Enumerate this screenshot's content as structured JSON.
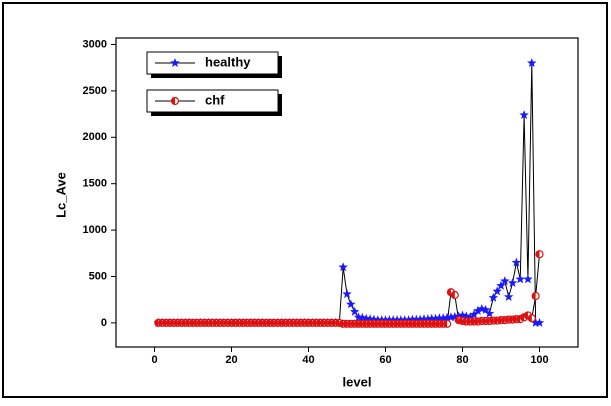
{
  "chart_data": {
    "type": "line",
    "x_label": "level",
    "y_label": "Lc_Ave",
    "x": [
      1,
      2,
      3,
      4,
      5,
      6,
      7,
      8,
      9,
      10,
      11,
      12,
      13,
      14,
      15,
      16,
      17,
      18,
      19,
      20,
      21,
      22,
      23,
      24,
      25,
      26,
      27,
      28,
      29,
      30,
      31,
      32,
      33,
      34,
      35,
      36,
      37,
      38,
      39,
      40,
      41,
      42,
      43,
      44,
      45,
      46,
      47,
      48,
      49,
      50,
      51,
      52,
      53,
      54,
      55,
      56,
      57,
      58,
      59,
      60,
      61,
      62,
      63,
      64,
      65,
      66,
      67,
      68,
      69,
      70,
      71,
      72,
      73,
      74,
      75,
      76,
      77,
      78,
      79,
      80,
      81,
      82,
      83,
      84,
      85,
      86,
      87,
      88,
      89,
      90,
      91,
      92,
      93,
      94,
      95,
      96,
      97,
      98,
      99,
      100
    ],
    "series": [
      {
        "name": "healthy",
        "color": "#1a1aff",
        "marker": "star",
        "line_color": "#000000",
        "values": [
          0,
          0,
          0,
          0,
          0,
          0,
          0,
          0,
          0,
          0,
          0,
          0,
          0,
          0,
          0,
          0,
          0,
          0,
          0,
          0,
          0,
          0,
          0,
          0,
          0,
          0,
          0,
          0,
          0,
          0,
          0,
          0,
          0,
          0,
          0,
          0,
          0,
          0,
          0,
          0,
          0,
          0,
          0,
          0,
          0,
          0,
          0,
          0,
          600,
          310,
          200,
          120,
          60,
          55,
          45,
          40,
          35,
          30,
          30,
          30,
          30,
          30,
          30,
          30,
          30,
          30,
          35,
          35,
          35,
          40,
          40,
          45,
          45,
          50,
          50,
          55,
          60,
          65,
          70,
          80,
          70,
          60,
          90,
          130,
          150,
          140,
          100,
          270,
          340,
          400,
          450,
          280,
          430,
          650,
          470,
          2240,
          470,
          2800,
          0,
          0
        ]
      },
      {
        "name": "chf",
        "color": "#dd1111",
        "marker": "half-circle",
        "line_color": "#000000",
        "values": [
          0,
          0,
          0,
          0,
          0,
          0,
          0,
          0,
          0,
          0,
          0,
          0,
          0,
          0,
          0,
          0,
          0,
          0,
          0,
          0,
          0,
          0,
          0,
          0,
          0,
          0,
          0,
          0,
          0,
          0,
          0,
          0,
          0,
          0,
          0,
          0,
          0,
          0,
          0,
          0,
          0,
          0,
          0,
          0,
          0,
          0,
          0,
          0,
          -10,
          -10,
          -10,
          -10,
          -10,
          -10,
          -10,
          -10,
          -10,
          -10,
          -10,
          -10,
          -10,
          -10,
          -10,
          -10,
          -10,
          -10,
          -10,
          -10,
          -10,
          -10,
          -10,
          -10,
          -10,
          -10,
          -10,
          -10,
          330,
          300,
          30,
          20,
          15,
          15,
          15,
          15,
          20,
          20,
          20,
          25,
          25,
          30,
          30,
          35,
          35,
          40,
          40,
          60,
          80,
          50,
          290,
          740
        ]
      }
    ],
    "xlim": [
      -10,
      110
    ],
    "xticks": [
      0,
      20,
      40,
      60,
      80,
      100
    ],
    "ylim": [
      -260,
      3070
    ],
    "yticks": [
      0,
      500,
      1000,
      1500,
      2000,
      2500,
      3000
    ],
    "legend": "upper left",
    "grid": false
  }
}
